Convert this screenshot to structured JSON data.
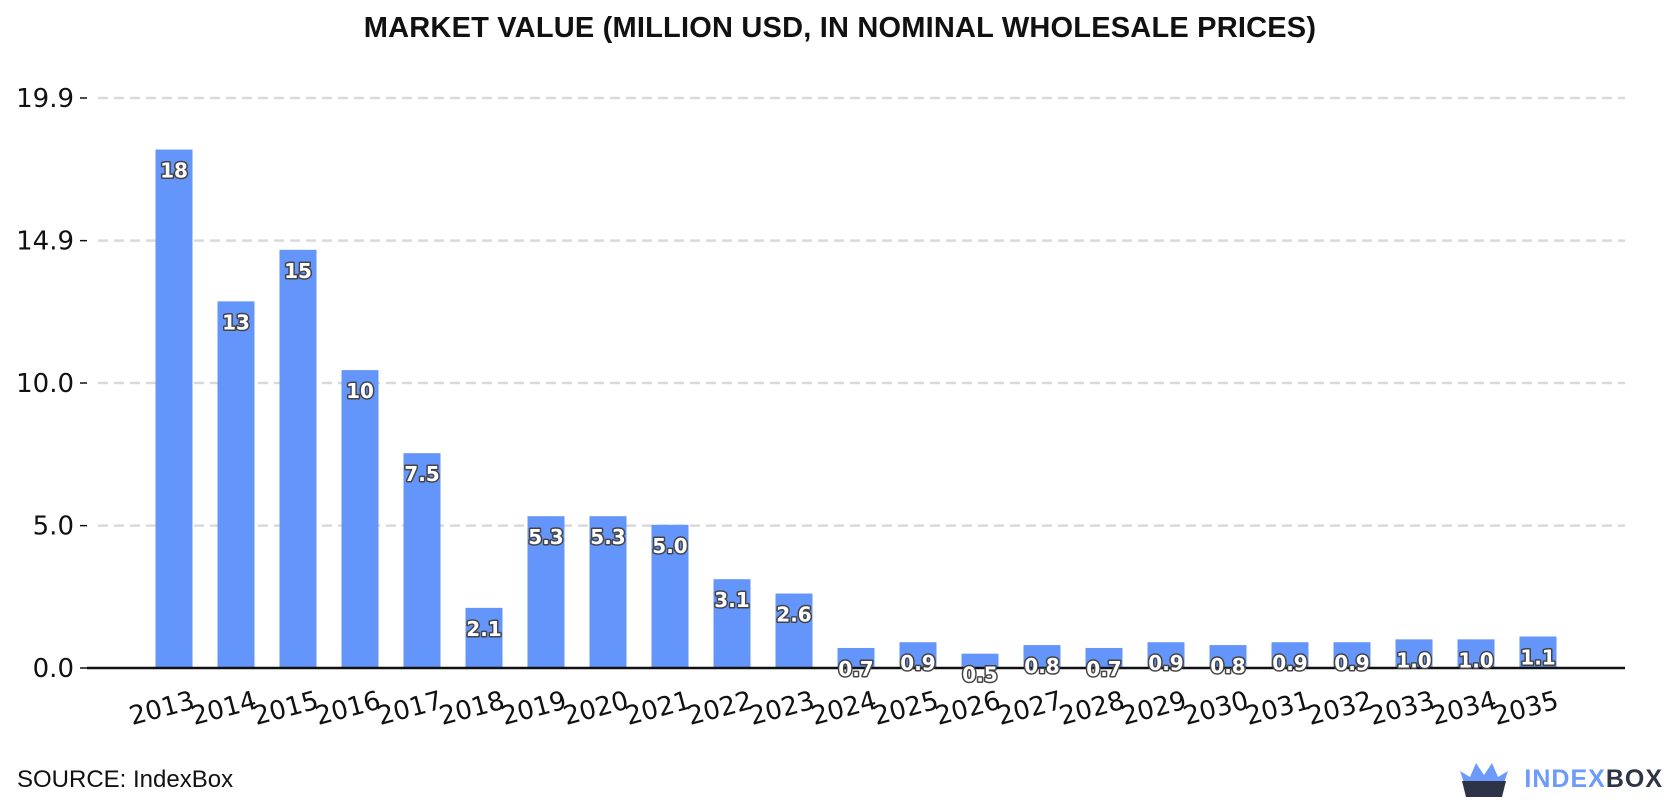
{
  "chart_data": {
    "type": "bar",
    "title": "MARKET VALUE (MILLION USD, IN NOMINAL WHOLESALE PRICES)",
    "xlabel": "",
    "ylabel": "",
    "categories": [
      "2013",
      "2014",
      "2015",
      "2016",
      "2017",
      "2018",
      "2019",
      "2020",
      "2021",
      "2022",
      "2023",
      "2024",
      "2025",
      "2026",
      "2027",
      "2028",
      "2029",
      "2030",
      "2031",
      "2032",
      "2033",
      "2034",
      "2035"
    ],
    "values": [
      18.1,
      12.8,
      14.6,
      10.4,
      7.5,
      2.1,
      5.3,
      5.3,
      5.0,
      3.1,
      2.6,
      0.7,
      0.9,
      0.5,
      0.8,
      0.7,
      0.9,
      0.8,
      0.9,
      0.9,
      1.0,
      1.0,
      1.1
    ],
    "data_labels": [
      "18",
      "13",
      "15",
      "10",
      "7.5",
      "2.1",
      "5.3",
      "5.3",
      "5.0",
      "3.1",
      "2.6",
      "0.7",
      "0.9",
      "0.5",
      "0.8",
      "0.7",
      "0.9",
      "0.8",
      "0.9",
      "0.9",
      "1.0",
      "1.0",
      "1.1"
    ],
    "yticks": [
      "0.0",
      "5.0",
      "10.0",
      "14.9",
      "19.9"
    ],
    "ytick_values": [
      0,
      4.97,
      9.95,
      14.92,
      19.9
    ],
    "ylim": [
      0,
      19.9
    ],
    "grid": true,
    "bar_color": "#6495fa"
  },
  "source": "SOURCE: IndexBox",
  "logo": {
    "part1": "INDEX",
    "part2": "BOX",
    "icon": "crown-basket-icon"
  },
  "colors": {
    "bar": "#6495fa",
    "grid": "#d9d9d9",
    "axis": "#111111",
    "logo_accent": "#6c9bfb",
    "logo_dark": "#2e3447"
  }
}
